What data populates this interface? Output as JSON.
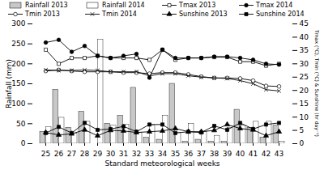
{
  "chart_data": {
    "type": "bar",
    "categories": [
      "25",
      "26",
      "27",
      "28",
      "29",
      "30",
      "31",
      "32",
      "33",
      "34",
      "35",
      "36",
      "37",
      "38",
      "39",
      "40",
      "41",
      "42",
      "43"
    ],
    "xlabel": "Standard meteorological weeks",
    "ylabel": "Rainfall (mm)",
    "y2label": "Tmax (°C), Tmin (°C) & Sunshine (hr day⁻¹)",
    "ylim": [
      0,
      300
    ],
    "yticks": [
      0,
      50,
      100,
      150,
      200,
      250,
      300
    ],
    "y2lim": [
      0,
      45
    ],
    "y2ticks": [
      0,
      5,
      10,
      15,
      20,
      25,
      30,
      35,
      40,
      45
    ],
    "grid": false,
    "legend": "top",
    "series": [
      {
        "name": "Rainfall 2013",
        "type": "bar",
        "color": "#c8c8c8",
        "values": [
          30,
          135,
          40,
          80,
          0,
          50,
          70,
          140,
          15,
          10,
          150,
          5,
          10,
          5,
          5,
          85,
          40,
          15,
          45
        ]
      },
      {
        "name": "Rainfall 2014",
        "type": "bar",
        "color": "#ffffff",
        "values": [
          42,
          65,
          25,
          55,
          260,
          45,
          48,
          28,
          45,
          70,
          28,
          50,
          30,
          20,
          40,
          45,
          55,
          55,
          5
        ]
      },
      {
        "name": "Tmax 2013",
        "type": "line",
        "axis": "y2",
        "color": "#000000",
        "marker": "square-open",
        "values": [
          35.3,
          30.0,
          32.2,
          32.2,
          33.0,
          32.2,
          32.2,
          32.2,
          31.5,
          35.3,
          31.5,
          32.2,
          32.2,
          32.5,
          32.5,
          30.8,
          30.8,
          29.3,
          30.0
        ]
      },
      {
        "name": "Tmax 2014",
        "type": "line",
        "axis": "y2",
        "color": "#000000",
        "marker": "circle",
        "values": [
          38.0,
          39.0,
          34.5,
          36.7,
          33.0,
          32.2,
          33.0,
          33.7,
          24.8,
          35.3,
          32.2,
          32.2,
          32.2,
          32.7,
          32.7,
          32.2,
          31.5,
          30.0,
          29.7
        ]
      },
      {
        "name": "Tmin 2013",
        "type": "line",
        "axis": "y2",
        "color": "#000000",
        "marker": "circle-open",
        "values": [
          27.3,
          27.7,
          27.3,
          27.0,
          27.0,
          27.0,
          26.7,
          26.7,
          26.3,
          26.7,
          26.7,
          26.0,
          25.2,
          24.7,
          24.7,
          24.5,
          23.7,
          21.7,
          21.5
        ]
      },
      {
        "name": "Tmin 2014",
        "type": "line",
        "axis": "y2",
        "color": "#000000",
        "marker": "x",
        "values": [
          27.7,
          27.5,
          27.5,
          27.7,
          27.5,
          27.0,
          27.0,
          27.0,
          25.5,
          26.3,
          26.3,
          25.5,
          25.0,
          24.7,
          24.5,
          23.7,
          22.5,
          20.3,
          19.8
        ]
      },
      {
        "name": "Sunshine 2013",
        "type": "line",
        "axis": "y2",
        "color": "#000000",
        "marker": "triangle",
        "values": [
          4.2,
          3.3,
          3.7,
          5.2,
          3.0,
          5.0,
          4.8,
          4.2,
          4.5,
          4.8,
          5.7,
          4.5,
          4.5,
          5.0,
          7.2,
          5.7,
          5.2,
          3.0,
          4.5
        ]
      },
      {
        "name": "Sunshine 2014",
        "type": "line",
        "axis": "y2",
        "color": "#000000",
        "marker": "square",
        "values": [
          4.0,
          6.3,
          4.0,
          7.8,
          5.2,
          5.5,
          6.5,
          4.5,
          7.2,
          7.2,
          4.0,
          4.5,
          4.2,
          6.7,
          5.2,
          7.8,
          5.5,
          7.2,
          7.8
        ]
      }
    ]
  }
}
